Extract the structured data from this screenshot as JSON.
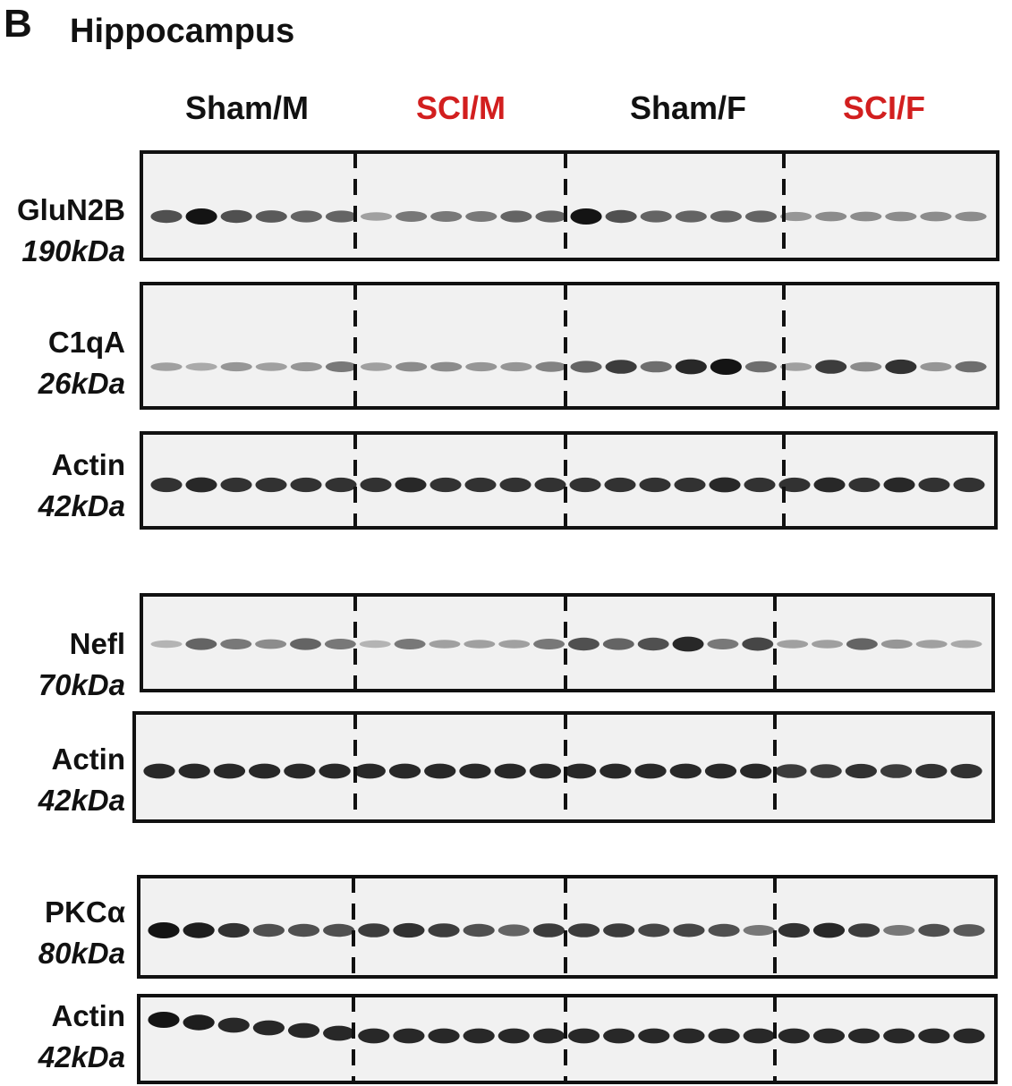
{
  "panel_letter": "B",
  "title": "Hippocampus",
  "groups": [
    {
      "label": "Sham/M",
      "color": "#111111"
    },
    {
      "label": "SCI/M",
      "color": "#d21f1f"
    },
    {
      "label": "Sham/F",
      "color": "#111111"
    },
    {
      "label": "SCI/F",
      "color": "#d21f1f"
    }
  ],
  "lanes_per_group": 6,
  "blots": [
    {
      "protein": "GluN2B",
      "kda": "190kDa",
      "intensity": [
        0.7,
        1,
        0.7,
        0.65,
        0.6,
        0.6,
        0.3,
        0.5,
        0.5,
        0.5,
        0.6,
        0.6,
        1,
        0.7,
        0.6,
        0.6,
        0.6,
        0.6,
        0.35,
        0.4,
        0.4,
        0.4,
        0.4,
        0.4
      ]
    },
    {
      "protein": "C1qA",
      "kda": "26kDa",
      "intensity": [
        0.3,
        0.25,
        0.35,
        0.3,
        0.35,
        0.5,
        0.3,
        0.4,
        0.4,
        0.35,
        0.35,
        0.45,
        0.6,
        0.8,
        0.55,
        0.9,
        1,
        0.55,
        0.3,
        0.8,
        0.4,
        0.85,
        0.35,
        0.55
      ]
    },
    {
      "protein": "Actin",
      "kda": "42kDa",
      "intensity": [
        0.85,
        0.9,
        0.85,
        0.85,
        0.85,
        0.85,
        0.85,
        0.9,
        0.85,
        0.85,
        0.85,
        0.85,
        0.85,
        0.85,
        0.85,
        0.85,
        0.9,
        0.85,
        0.85,
        0.9,
        0.85,
        0.9,
        0.85,
        0.85
      ]
    },
    {
      "protein": "Nefl",
      "kda": "70kDa",
      "intensity": [
        0.2,
        0.6,
        0.5,
        0.4,
        0.6,
        0.5,
        0.2,
        0.5,
        0.3,
        0.3,
        0.3,
        0.5,
        0.7,
        0.6,
        0.7,
        0.9,
        0.5,
        0.75,
        0.3,
        0.3,
        0.6,
        0.35,
        0.3,
        0.25
      ]
    },
    {
      "protein": "Actin",
      "kda": "42kDa",
      "intensity": [
        0.9,
        0.9,
        0.9,
        0.9,
        0.9,
        0.9,
        0.9,
        0.9,
        0.9,
        0.9,
        0.9,
        0.9,
        0.9,
        0.9,
        0.9,
        0.9,
        0.9,
        0.9,
        0.8,
        0.8,
        0.85,
        0.8,
        0.85,
        0.85
      ]
    },
    {
      "protein": "PKCα",
      "kda": "80kDa",
      "intensity": [
        1,
        0.95,
        0.85,
        0.7,
        0.7,
        0.7,
        0.8,
        0.85,
        0.8,
        0.7,
        0.6,
        0.8,
        0.8,
        0.8,
        0.75,
        0.75,
        0.7,
        0.5,
        0.85,
        0.9,
        0.8,
        0.5,
        0.7,
        0.65
      ]
    },
    {
      "protein": "Actin",
      "kda": "42kDa",
      "intensity": [
        1,
        0.95,
        0.9,
        0.9,
        0.9,
        0.9,
        0.9,
        0.9,
        0.9,
        0.9,
        0.9,
        0.9,
        0.9,
        0.9,
        0.9,
        0.9,
        0.9,
        0.9,
        0.9,
        0.9,
        0.9,
        0.9,
        0.9,
        0.9
      ]
    }
  ]
}
